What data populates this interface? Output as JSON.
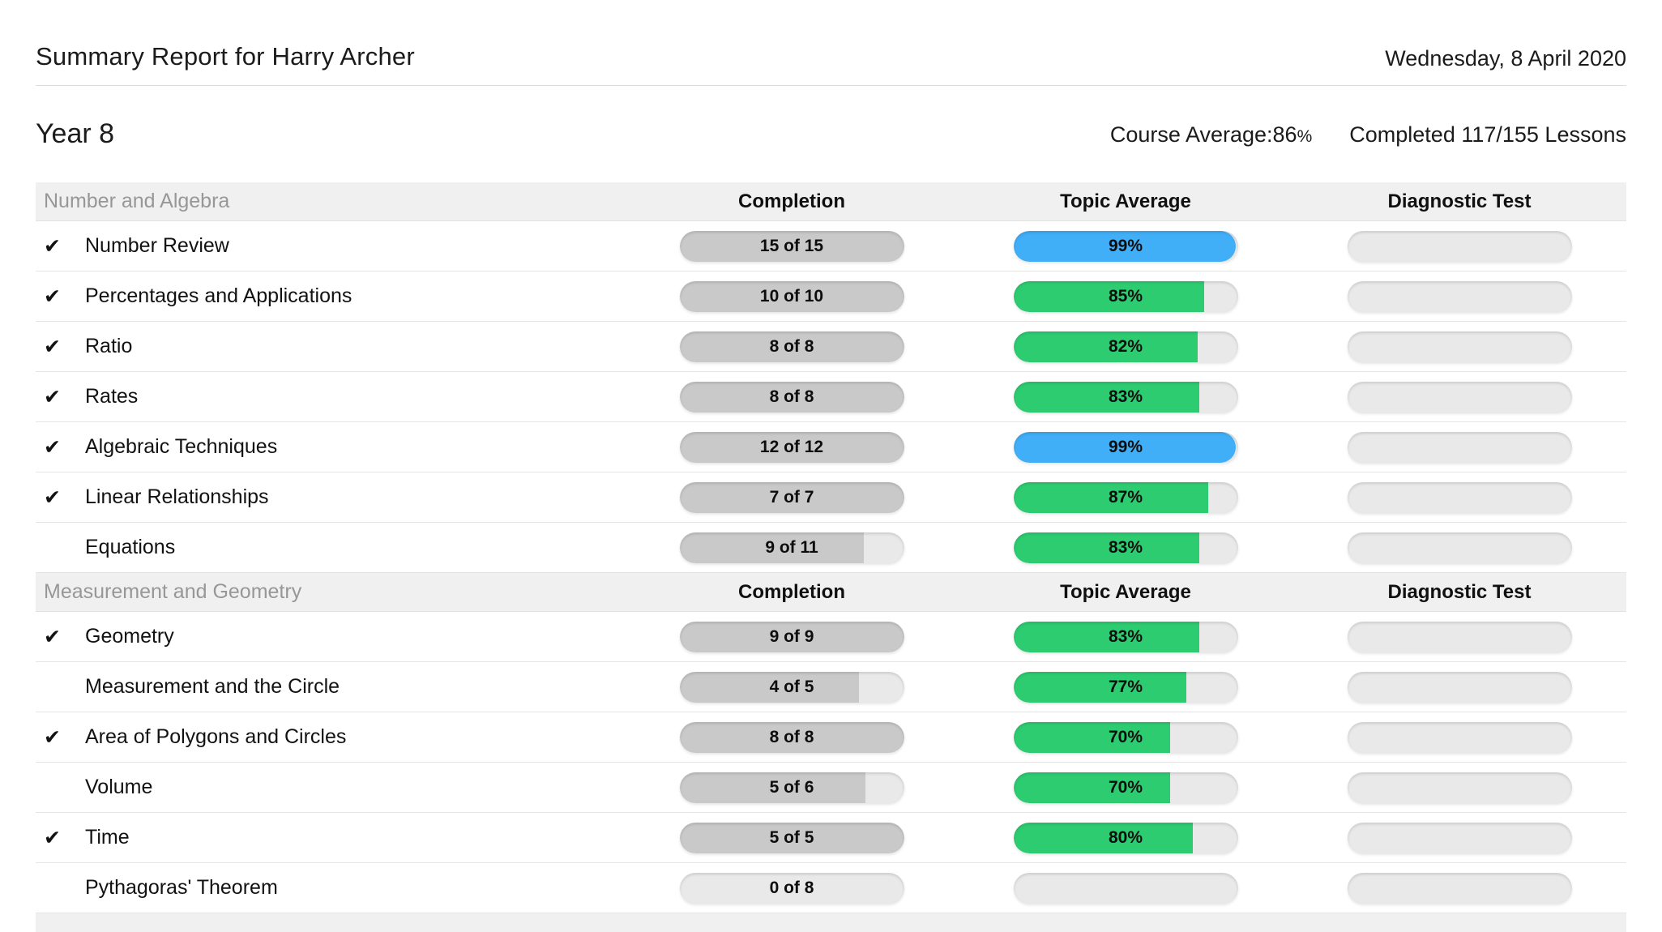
{
  "header": {
    "title": "Summary Report for Harry Archer",
    "date": "Wednesday, 8 April 2020"
  },
  "summary": {
    "year": "Year 8",
    "course_average_label": "Course Average:",
    "course_average_value": "86",
    "course_average_unit": "%",
    "completed_lessons": "Completed 117/155 Lessons"
  },
  "table": {
    "columns": [
      "Completion",
      "Topic Average",
      "Diagnostic Test"
    ]
  },
  "icons": {
    "completed_check": "✔"
  },
  "colors": {
    "completion_fill": "#c9c9c9",
    "pill_track": "#e9e9e9",
    "section_background": "#f0f0f0",
    "average_green": "#2ecc71",
    "average_blue": "#41aef8"
  },
  "sections": [
    {
      "title": "Number and Algebra",
      "rows": [
        {
          "name": "Number Review",
          "completed": true,
          "completion": "15 of 15",
          "completion_pct": 100,
          "average": "99%",
          "average_pct": 99,
          "average_color": "blue"
        },
        {
          "name": "Percentages and Applications",
          "completed": true,
          "completion": "10 of 10",
          "completion_pct": 100,
          "average": "85%",
          "average_pct": 85,
          "average_color": "green"
        },
        {
          "name": "Ratio",
          "completed": true,
          "completion": "8 of 8",
          "completion_pct": 100,
          "average": "82%",
          "average_pct": 82,
          "average_color": "green"
        },
        {
          "name": "Rates",
          "completed": true,
          "completion": "8 of 8",
          "completion_pct": 100,
          "average": "83%",
          "average_pct": 83,
          "average_color": "green"
        },
        {
          "name": "Algebraic Techniques",
          "completed": true,
          "completion": "12 of 12",
          "completion_pct": 100,
          "average": "99%",
          "average_pct": 99,
          "average_color": "blue"
        },
        {
          "name": "Linear Relationships",
          "completed": true,
          "completion": "7 of 7",
          "completion_pct": 100,
          "average": "87%",
          "average_pct": 87,
          "average_color": "green"
        },
        {
          "name": "Equations",
          "completed": false,
          "completion": "9 of 11",
          "completion_pct": 82,
          "average": "83%",
          "average_pct": 83,
          "average_color": "green"
        }
      ]
    },
    {
      "title": "Measurement and Geometry",
      "rows": [
        {
          "name": "Geometry",
          "completed": true,
          "completion": "9 of 9",
          "completion_pct": 100,
          "average": "83%",
          "average_pct": 83,
          "average_color": "green"
        },
        {
          "name": "Measurement and the Circle",
          "completed": false,
          "completion": "4 of 5",
          "completion_pct": 80,
          "average": "77%",
          "average_pct": 77,
          "average_color": "green"
        },
        {
          "name": "Area of Polygons and Circles",
          "completed": true,
          "completion": "8 of 8",
          "completion_pct": 100,
          "average": "70%",
          "average_pct": 70,
          "average_color": "green"
        },
        {
          "name": "Volume",
          "completed": false,
          "completion": "5 of 6",
          "completion_pct": 83,
          "average": "70%",
          "average_pct": 70,
          "average_color": "green"
        },
        {
          "name": "Time",
          "completed": true,
          "completion": "5 of 5",
          "completion_pct": 100,
          "average": "80%",
          "average_pct": 80,
          "average_color": "green"
        },
        {
          "name": "Pythagoras' Theorem",
          "completed": false,
          "completion": "0 of 8",
          "completion_pct": 0,
          "average": null,
          "average_pct": 0,
          "average_color": null
        }
      ]
    }
  ]
}
